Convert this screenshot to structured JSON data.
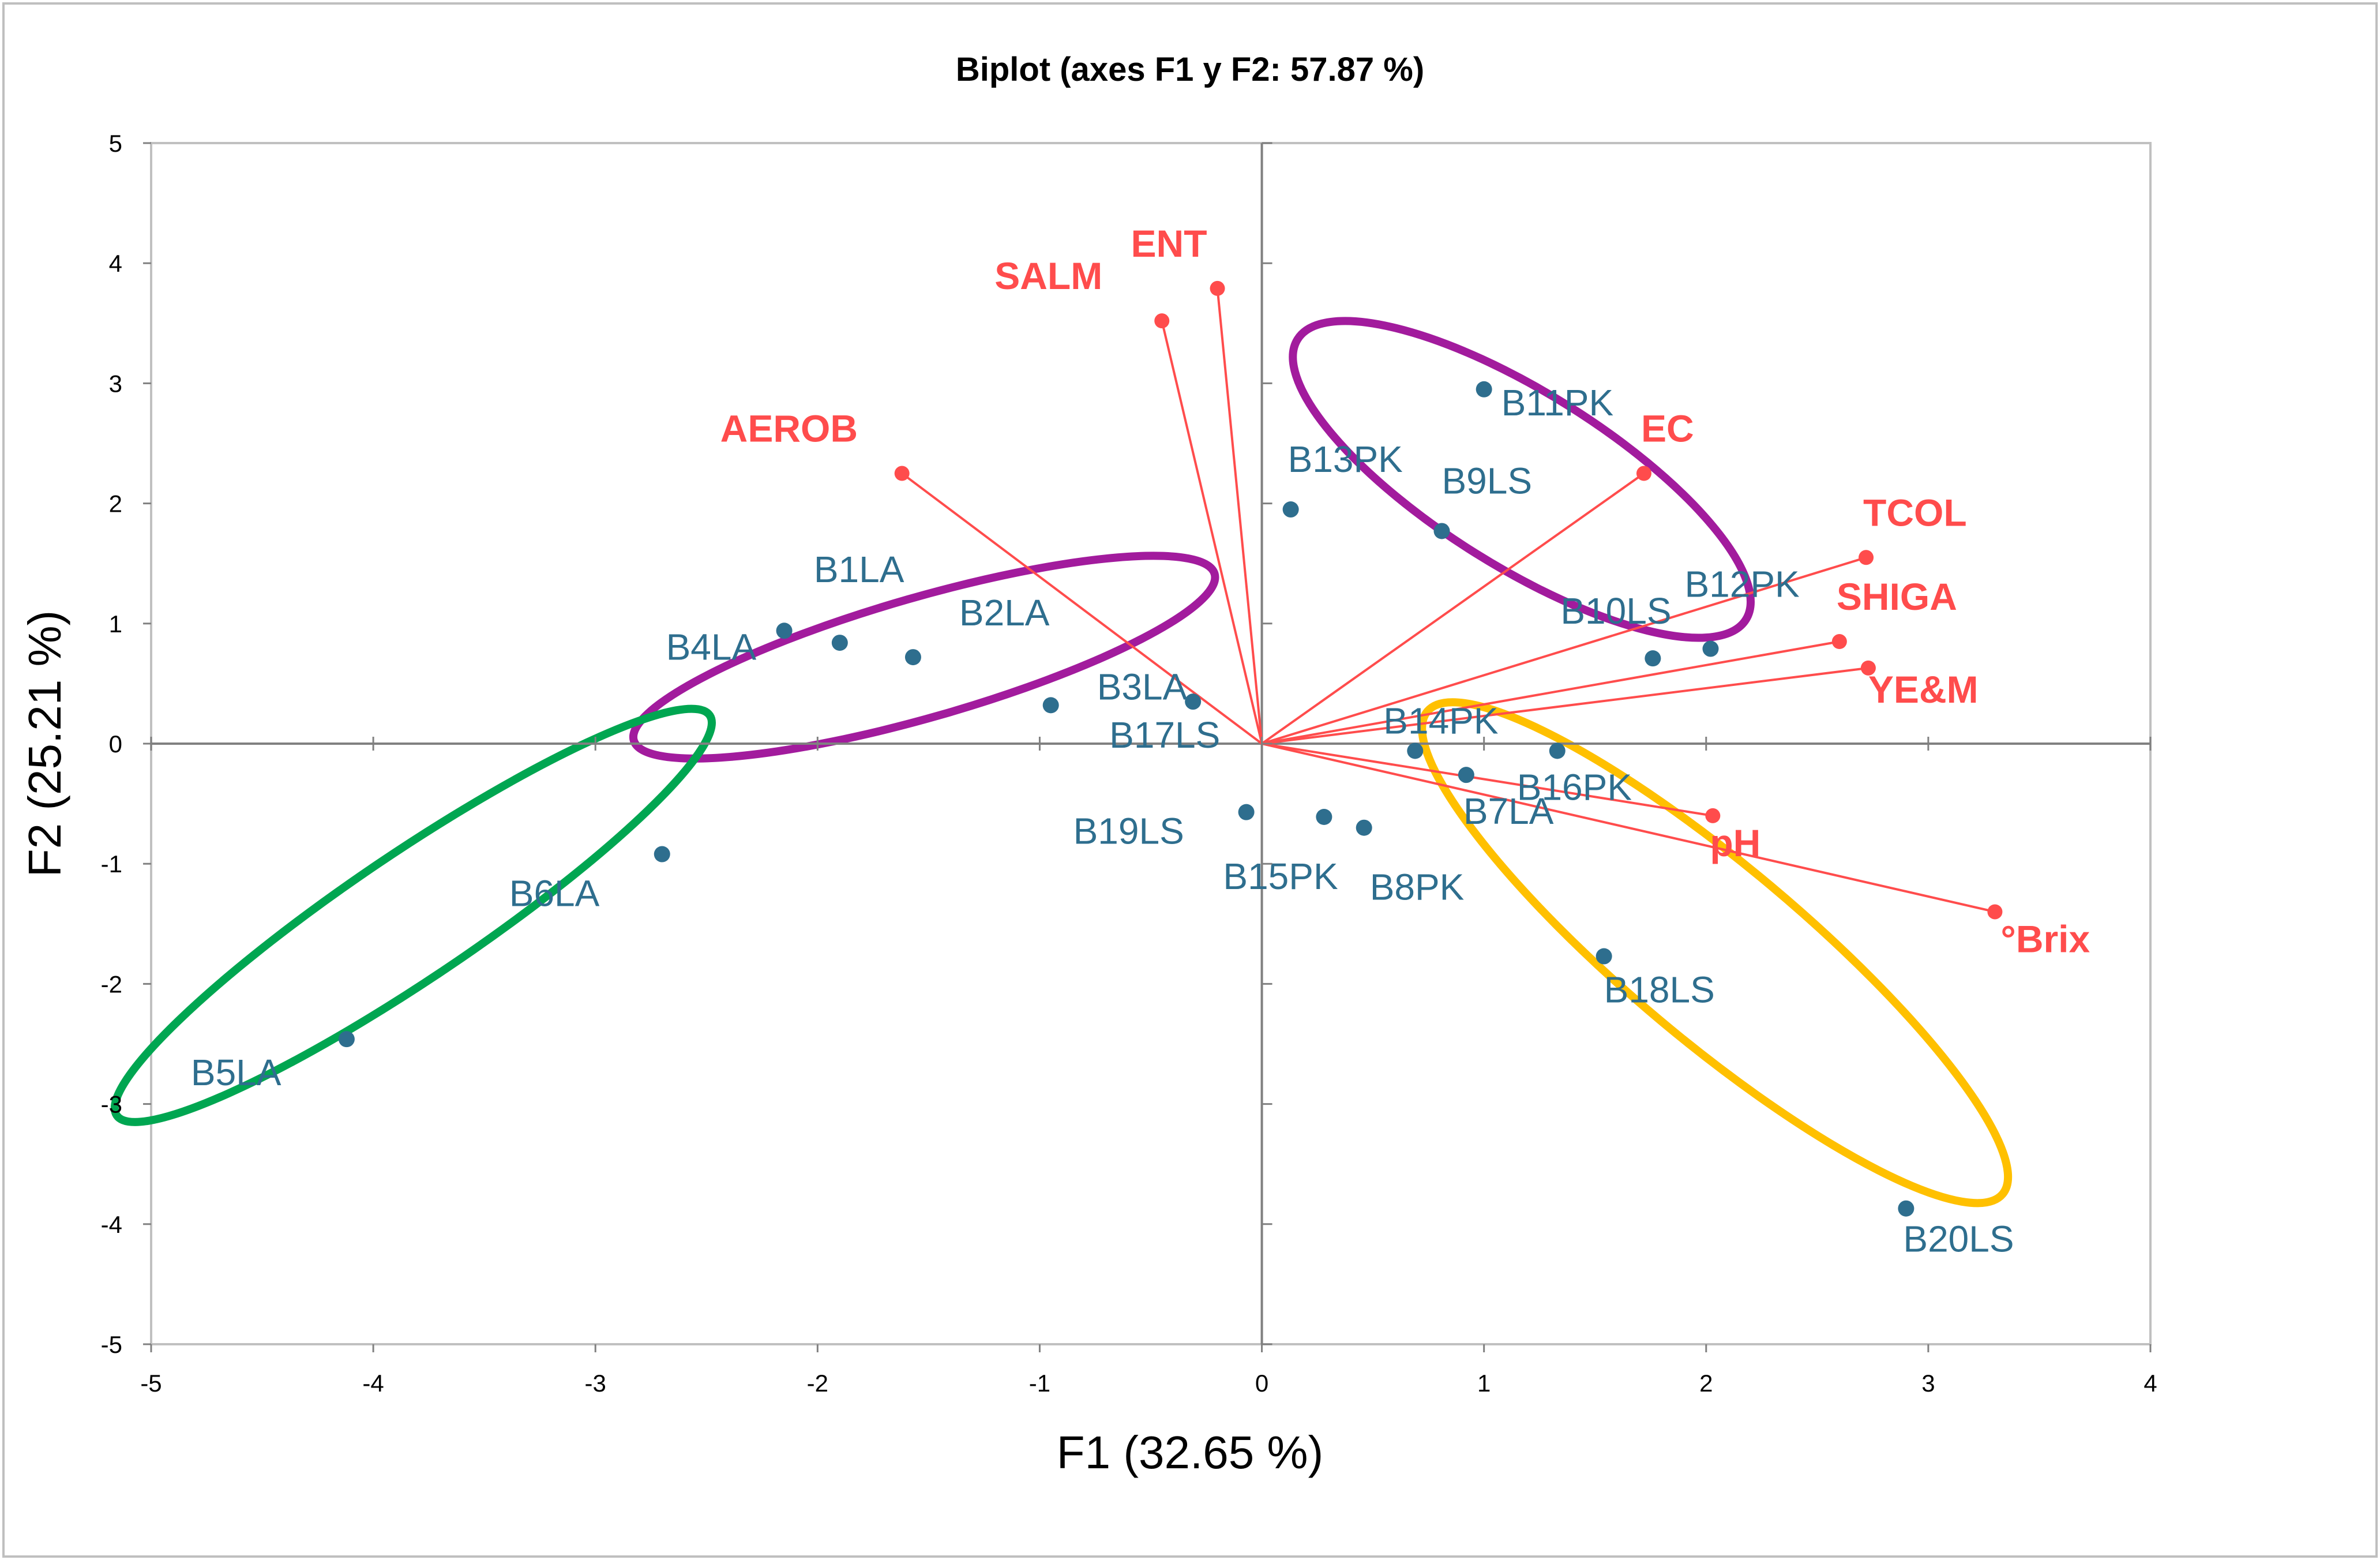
{
  "chart_data": {
    "type": "scatter",
    "title": "Biplot (axes F1 y F2: 57.87 %)",
    "xlabel": "F1 (32.65 %)",
    "ylabel": "F2 (25.21 %)",
    "xlim": [
      -5,
      4
    ],
    "ylim": [
      -5,
      5
    ],
    "xticks": [
      -5,
      -4,
      -3,
      -2,
      -1,
      0,
      1,
      2,
      3,
      4
    ],
    "yticks": [
      -5,
      -4,
      -3,
      -2,
      -1,
      0,
      1,
      2,
      3,
      4,
      5
    ],
    "grid": false,
    "colors": {
      "observations": "#2e6e8e",
      "variables": "#ff4c4c",
      "axes": "#808080",
      "frame": "#c0c0c0"
    },
    "observations": [
      {
        "label": "B1LA",
        "x": -1.9,
        "y": 0.84
      },
      {
        "label": "B2LA",
        "x": -1.57,
        "y": 0.72
      },
      {
        "label": "B3LA",
        "x": -0.95,
        "y": 0.32
      },
      {
        "label": "B4LA",
        "x": -2.15,
        "y": 0.94
      },
      {
        "label": "B5LA",
        "x": -4.12,
        "y": -2.46
      },
      {
        "label": "B6LA",
        "x": -2.7,
        "y": -0.92
      },
      {
        "label": "B7LA",
        "x": 0.92,
        "y": -0.26
      },
      {
        "label": "B8PK",
        "x": 0.46,
        "y": -0.7
      },
      {
        "label": "B9LS",
        "x": 0.81,
        "y": 1.77
      },
      {
        "label": "B10LS",
        "x": 1.76,
        "y": 0.71
      },
      {
        "label": "B11PK",
        "x": 1.0,
        "y": 2.95
      },
      {
        "label": "B12PK",
        "x": 2.02,
        "y": 0.79
      },
      {
        "label": "B13PK",
        "x": 0.13,
        "y": 1.95
      },
      {
        "label": "B14PK",
        "x": 0.69,
        "y": -0.06
      },
      {
        "label": "B15PK",
        "x": 0.28,
        "y": -0.61
      },
      {
        "label": "B16PK",
        "x": 1.33,
        "y": -0.06
      },
      {
        "label": "B17LS",
        "x": -0.31,
        "y": 0.35
      },
      {
        "label": "B18LS",
        "x": 1.54,
        "y": -1.77
      },
      {
        "label": "B19LS",
        "x": -0.07,
        "y": -0.57
      },
      {
        "label": "B20LS",
        "x": 2.9,
        "y": -3.87
      }
    ],
    "variables": [
      {
        "label": "ENT",
        "x": -0.2,
        "y": 3.79
      },
      {
        "label": "SALM",
        "x": -0.45,
        "y": 3.52
      },
      {
        "label": "AEROB",
        "x": -1.62,
        "y": 2.25
      },
      {
        "label": "EC",
        "x": 1.72,
        "y": 2.25
      },
      {
        "label": "TCOL",
        "x": 2.72,
        "y": 1.55
      },
      {
        "label": "SHIGA",
        "x": 2.6,
        "y": 0.85
      },
      {
        "label": "YE&M",
        "x": 2.73,
        "y": 0.63
      },
      {
        "label": "pH",
        "x": 2.03,
        "y": -0.6
      },
      {
        "label": "°Brix",
        "x": 3.3,
        "y": -1.4
      }
    ],
    "groups": [
      {
        "name": "purple-left",
        "color": "#a21b9d",
        "cx": -1.52,
        "cy": 0.72,
        "rx": 2.72,
        "ry": 1.0,
        "angle_deg": 16
      },
      {
        "name": "purple-right",
        "color": "#a21b9d",
        "cx": 1.17,
        "cy": 2.2,
        "rx": 2.38,
        "ry": 1.45,
        "angle_deg": -32
      },
      {
        "name": "green",
        "color": "#00a651",
        "cx": -3.82,
        "cy": -1.43,
        "rx": 3.22,
        "ry": 1.04,
        "angle_deg": 34
      },
      {
        "name": "yellow",
        "color": "#ffc000",
        "cx": 2.04,
        "cy": -1.74,
        "rx": 3.38,
        "ry": 1.45,
        "angle_deg": -40
      }
    ]
  }
}
